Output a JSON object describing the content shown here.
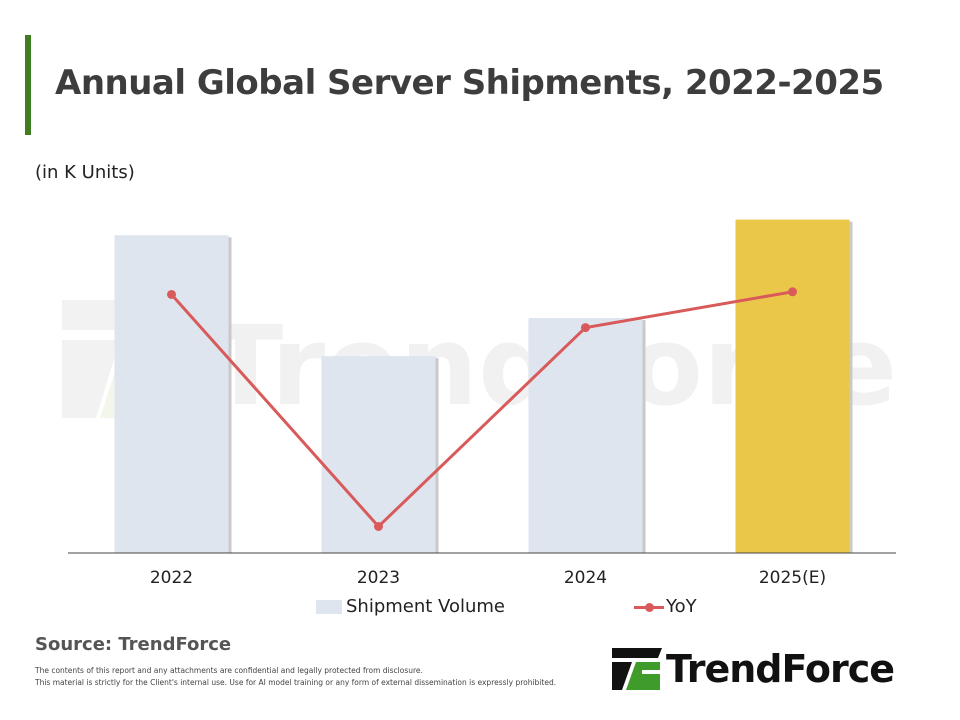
{
  "header": {
    "title": "Annual Global Server Shipments, 2022-2025",
    "unit": "(in K Units)"
  },
  "chart_data": {
    "type": "bar",
    "title": "Annual Global Server Shipments, 2022-2025",
    "ylabel": "(in K Units)",
    "categories": [
      "2022",
      "2023",
      "2024",
      "2025(E)"
    ],
    "series": [
      {
        "name": "Shipment Volume",
        "kind": "bar",
        "values": [
          14200,
          8800,
          10500,
          14900
        ],
        "colors": [
          "#dfe5ee",
          "#dfe5ee",
          "#dfe5ee",
          "#eac748"
        ]
      },
      {
        "name": "YoY",
        "kind": "line",
        "values": [
          4.5,
          -13.0,
          2.0,
          4.7
        ],
        "color": "#d85a5a"
      }
    ],
    "ylim_bar": [
      0,
      16000
    ],
    "ylim_line": [
      -15,
      12
    ],
    "legend": [
      "Shipment Volume",
      "YoY"
    ],
    "legend_position": "bottom",
    "grid": false
  },
  "watermark": {
    "text": "TrendForce"
  },
  "footer": {
    "source": "Source: TrendForce",
    "disclaimer_line1": "The contents of this report and any attachments are confidential and legally protected from disclosure.",
    "disclaimer_line2": "This material is strictly for the Client's internal use. Use for AI model training or any form of external dissemination is expressly prohibited.",
    "logo_text": "TrendForce"
  },
  "colors": {
    "accent": "#3f7d20",
    "bar": "#dfe5ee",
    "bar_highlight": "#eac748",
    "line": "#d85a5a"
  }
}
